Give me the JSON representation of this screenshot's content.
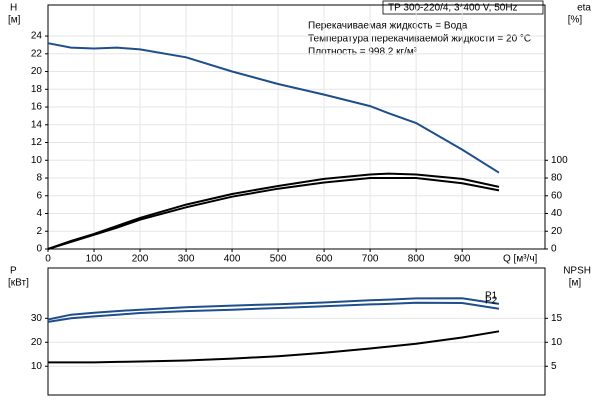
{
  "chart_data": [
    {
      "type": "line",
      "title": "TP 300-220/4, 3*400 V, 50Hz",
      "annotations": [
        "Перекачиваемая жидкость = Вода",
        "Температура перекачиваемой жидкости = 20 °C",
        "Плотность = 998.2 кг/м³"
      ],
      "ylabel": "H",
      "yunits": "[м]",
      "y2label": "eta",
      "y2units": "[%]",
      "xlabel": "Q [м³/ч]",
      "x": [
        0,
        50,
        100,
        150,
        200,
        300,
        400,
        500,
        600,
        700,
        740,
        800,
        900,
        980
      ],
      "xlim": [
        0,
        1080
      ],
      "xticks": [
        0,
        100,
        200,
        300,
        400,
        500,
        600,
        700,
        800,
        900
      ],
      "ylim": [
        0,
        27.5
      ],
      "yticks": [
        0,
        2,
        4,
        6,
        8,
        10,
        12,
        14,
        16,
        18,
        20,
        22,
        24
      ],
      "y2lim": [
        0,
        275
      ],
      "y2ticks": [
        0,
        20,
        40,
        60,
        80,
        100
      ],
      "grid": true,
      "series": [
        {
          "color": "#1f4e8c",
          "values": [
            23.2,
            22.7,
            22.6,
            22.7,
            22.5,
            21.6,
            20.0,
            18.6,
            17.4,
            16.1,
            15.3,
            14.2,
            11.2,
            8.6
          ]
        },
        {
          "color": "#000000",
          "axis": "y2",
          "values": [
            0,
            9,
            17,
            26,
            35,
            50,
            62,
            71,
            79,
            84,
            85,
            84,
            79,
            70
          ]
        },
        {
          "color": "#000000",
          "axis": "y2",
          "values": [
            0,
            8,
            16,
            24,
            33,
            47,
            59,
            68,
            75,
            80,
            80,
            80,
            74,
            66
          ]
        }
      ]
    },
    {
      "type": "line",
      "ylabel": "P",
      "yunits": "[кВт]",
      "y2label": "NPSH",
      "y2units": "[м]",
      "x": [
        0,
        50,
        100,
        150,
        200,
        300,
        400,
        500,
        600,
        700,
        740,
        800,
        900,
        980
      ],
      "xlim": [
        0,
        1080
      ],
      "ylim": [
        -2,
        51
      ],
      "yticks": [
        10,
        20,
        30
      ],
      "y2lim": [
        -1,
        25.5
      ],
      "y2ticks": [
        5,
        10,
        15
      ],
      "grid": true,
      "series": [
        {
          "name": "P1",
          "color": "#1f4e8c",
          "values": [
            29.5,
            31.5,
            32.3,
            33,
            33.6,
            34.6,
            35.3,
            35.9,
            36.6,
            37.5,
            37.8,
            38.3,
            38.4,
            36
          ]
        },
        {
          "name": "P2",
          "color": "#1f4e8c",
          "values": [
            28.5,
            30,
            30.8,
            31.5,
            32.2,
            33,
            33.6,
            34.3,
            35,
            35.8,
            36,
            36.5,
            36.4,
            34
          ]
        },
        {
          "color": "#000000",
          "axis": "y2",
          "values": [
            5.8,
            5.8,
            5.8,
            5.9,
            6,
            6.2,
            6.6,
            7.1,
            7.8,
            8.7,
            9.1,
            9.7,
            11,
            12.3
          ]
        }
      ]
    }
  ]
}
